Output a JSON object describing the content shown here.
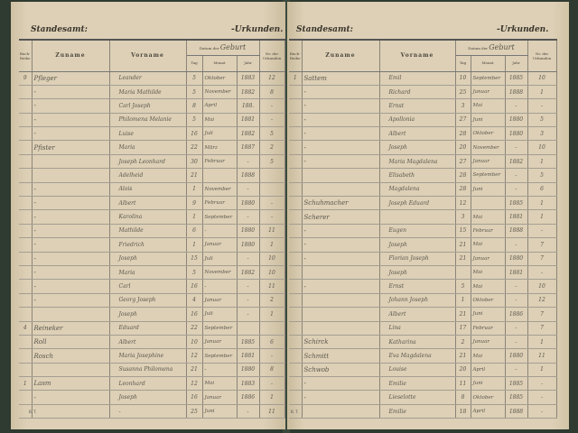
{
  "header": {
    "office_label": "Standesamt:",
    "records_label": "-Urkunden.",
    "col_book": "Buch-Reihe",
    "col_surname": "Zuname",
    "col_given": "Vorname",
    "col_date_prefix": "Datum der",
    "col_date_event": "Geburt",
    "col_day": "Tag",
    "col_month": "Monat",
    "col_year": "Jahr",
    "col_nr": "Nr. der Urkunden"
  },
  "footer": "B. T.",
  "left_rows": [
    [
      "9",
      "Pfleger",
      "Leander",
      "5",
      "Oktober",
      "1883",
      "12"
    ],
    [
      "",
      "-",
      "Maria Mathilde",
      "5",
      "November",
      "1882",
      "8"
    ],
    [
      "",
      "-",
      "Carl Joseph",
      "8",
      "April",
      "188.",
      "-"
    ],
    [
      "",
      "-",
      "Philomena Melanie",
      "5",
      "Mai",
      "1881",
      "-"
    ],
    [
      "",
      "-",
      "Luise",
      "16",
      "Juli",
      "1882",
      "5"
    ],
    [
      "",
      "Pfister",
      "Maria",
      "22",
      "März",
      "1887",
      "2"
    ],
    [
      "",
      "",
      "Joseph Leonhard",
      "30",
      "Februar",
      "-",
      "5"
    ],
    [
      "",
      "",
      "Adelheid",
      "21",
      "",
      "1888",
      ""
    ],
    [
      "",
      "-",
      "Alois",
      "1",
      "November",
      "-",
      ""
    ],
    [
      "",
      "-",
      "Albert",
      "9",
      "Februar",
      "1880",
      "-"
    ],
    [
      "",
      "-",
      "Karolina",
      "1",
      "September",
      "-",
      "-"
    ],
    [
      "",
      "-",
      "Mathilde",
      "6",
      "-",
      "1880",
      "11"
    ],
    [
      "",
      "-",
      "Friedrich",
      "1",
      "Januar",
      "1880",
      "1"
    ],
    [
      "",
      "-",
      "Joseph",
      "15",
      "Juli",
      "-",
      "10"
    ],
    [
      "",
      "-",
      "Maria",
      "5",
      "November",
      "1882",
      "10"
    ],
    [
      "",
      "-",
      "Carl",
      "16",
      "-",
      "-",
      "11"
    ],
    [
      "",
      "-",
      "Georg Joseph",
      "4",
      "Januar",
      "-",
      "2"
    ],
    [
      "",
      "",
      "Joseph",
      "16",
      "Juli",
      "-",
      "1"
    ],
    [
      "4",
      "Reineker",
      "Eduard",
      "22",
      "September",
      "",
      ""
    ],
    [
      "",
      "Roll",
      "Albert",
      "10",
      "Januar",
      "1885",
      "6"
    ],
    [
      "",
      "Rosch",
      "Maria Josephine",
      "12",
      "September",
      "1881",
      "-"
    ],
    [
      "",
      "",
      "Susanna Philomena",
      "21",
      "-",
      "1880",
      "8"
    ],
    [
      "1",
      "Lasm",
      "Leonhard",
      "12",
      "Mai",
      "1883",
      "-"
    ],
    [
      "",
      "-",
      "Joseph",
      "16",
      "Januar",
      "1886",
      "1"
    ],
    [
      "",
      "",
      "-",
      "25",
      "Juni",
      "-",
      "11"
    ]
  ],
  "right_rows": [
    [
      "1",
      "Sattem",
      "Emil",
      "10",
      "September",
      "1885",
      "10"
    ],
    [
      "",
      "-",
      "Richard",
      "25",
      "Januar",
      "1888",
      "1"
    ],
    [
      "",
      "-",
      "Ernst",
      "3",
      "Mai",
      "-",
      "-"
    ],
    [
      "",
      "-",
      "Apollonia",
      "27",
      "Juni",
      "1880",
      "5"
    ],
    [
      "",
      "-",
      "Albert",
      "28",
      "Oktober",
      "1880",
      "3"
    ],
    [
      "",
      "-",
      "Joseph",
      "20",
      "November",
      "-",
      "10"
    ],
    [
      "",
      "-",
      "Maria Magdalena",
      "27",
      "Januar",
      "1882",
      "1"
    ],
    [
      "",
      "",
      "Elisabeth",
      "28",
      "September",
      "-",
      "5"
    ],
    [
      "",
      "",
      "Magdalena",
      "28",
      "Juni",
      "-",
      "6"
    ],
    [
      "",
      "Schuhmacher",
      "Joseph Eduard",
      "12",
      "",
      "1885",
      "1"
    ],
    [
      "",
      "Scherer",
      "",
      "3",
      "Mai",
      "1881",
      "1"
    ],
    [
      "",
      "-",
      "Eugen",
      "15",
      "Februar",
      "1888",
      "-"
    ],
    [
      "",
      "-",
      "Joseph",
      "21",
      "Mai",
      "-",
      "7"
    ],
    [
      "",
      "-",
      "Florian Joseph",
      "21",
      "Januar",
      "1880",
      "7"
    ],
    [
      "",
      "",
      "Joseph",
      "",
      "Mai",
      "1881",
      "-"
    ],
    [
      "",
      "-",
      "Ernst",
      "5",
      "Mai",
      "-",
      "10"
    ],
    [
      "",
      "",
      "Johann Joseph",
      "1",
      "Oktober",
      "-",
      "12"
    ],
    [
      "",
      "",
      "Albert",
      "21",
      "Juni",
      "1886",
      "7"
    ],
    [
      "",
      "",
      "Lina",
      "17",
      "Februar",
      "-",
      "7"
    ],
    [
      "",
      "Schirck",
      "Katharina",
      "2",
      "Januar",
      "-",
      "1"
    ],
    [
      "",
      "Schmitt",
      "Eva Magdalena",
      "21",
      "Mai",
      "1880",
      "11"
    ],
    [
      "",
      "Schwob",
      "Louise",
      "20",
      "April",
      "-",
      "1"
    ],
    [
      "",
      "-",
      "Emilie",
      "11",
      "Juni",
      "1885",
      "-"
    ],
    [
      "",
      "-",
      "Lieselotte",
      "8",
      "Oktober",
      "1885",
      "-"
    ],
    [
      "",
      "",
      "Emilie",
      "18",
      "April",
      "1888",
      "-"
    ]
  ]
}
